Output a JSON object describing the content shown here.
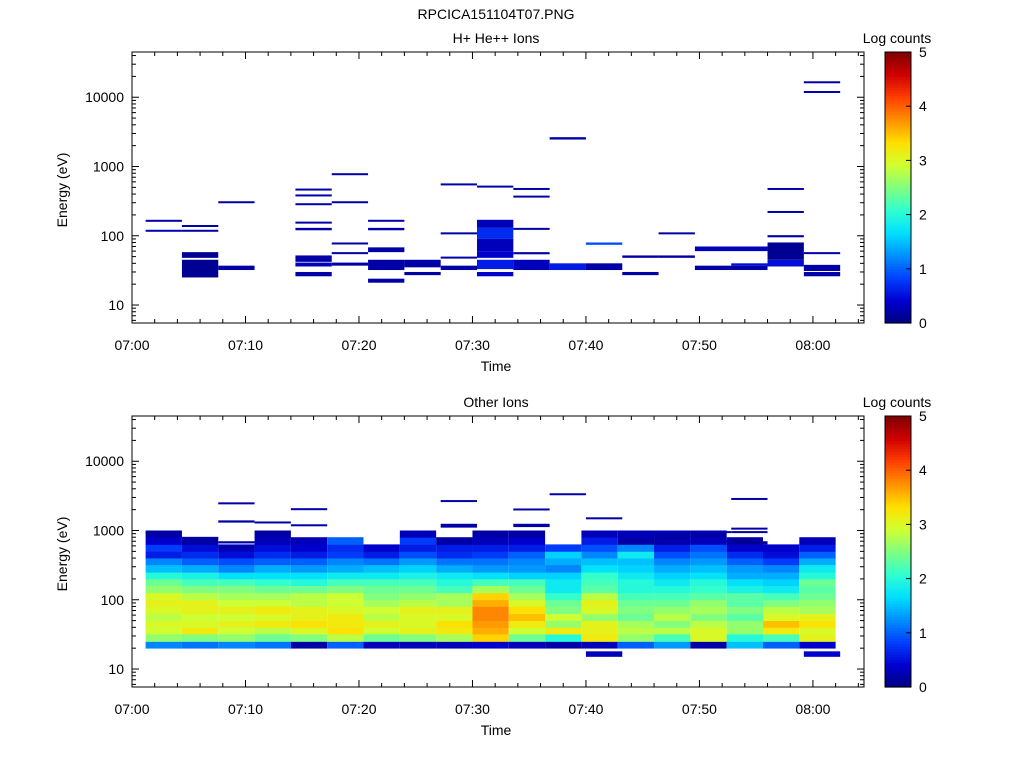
{
  "figure_title": "RPCICA151104T07.PNG",
  "colors": {
    "frame": "#000000",
    "background": "#ffffff"
  },
  "colormap": [
    "#000080",
    "#0000d0",
    "#0040ff",
    "#0090ff",
    "#00e0ff",
    "#30ffd0",
    "#80ff80",
    "#d0ff30",
    "#ffe000",
    "#ff9000",
    "#ff4000",
    "#d00000",
    "#800000"
  ],
  "chart_data": [
    {
      "type": "heatmap",
      "title": "H+ He++ Ions",
      "xlabel": "Time",
      "ylabel": "Energy (eV)",
      "xlim": [
        0,
        64.5
      ],
      "ylim": [
        5.5,
        45000
      ],
      "y_log": true,
      "x_ticks": [
        0,
        10,
        20,
        30,
        40,
        50,
        60
      ],
      "x_tick_labels": [
        "07:00",
        "07:10",
        "07:20",
        "07:30",
        "07:40",
        "07:50",
        "08:00"
      ],
      "y_ticks": [
        10,
        100,
        1000,
        10000
      ],
      "y_tick_labels": [
        "10",
        "100",
        "1000",
        "10000"
      ],
      "colorbar": {
        "label": "Log counts",
        "range": [
          0,
          5
        ],
        "ticks": [
          "0",
          "1",
          "2",
          "3",
          "4",
          "5"
        ]
      },
      "cells": [
        [
          1.2,
          4.4,
          118,
          122,
          0.3
        ],
        [
          1.2,
          4.4,
          165,
          170,
          0.2
        ],
        [
          4.4,
          7.6,
          25,
          45,
          0.1
        ],
        [
          4.4,
          7.6,
          48,
          58,
          0.1
        ],
        [
          4.4,
          7.6,
          118,
          122,
          0.2
        ],
        [
          4.4,
          7.6,
          138,
          143,
          0.2
        ],
        [
          7.6,
          10.8,
          32,
          37,
          0.2
        ],
        [
          7.6,
          10.8,
          305,
          315,
          0.2
        ],
        [
          14.4,
          17.6,
          26,
          30,
          0.2
        ],
        [
          14.4,
          17.6,
          36,
          41,
          0.3
        ],
        [
          14.4,
          17.6,
          42,
          52,
          0.2
        ],
        [
          14.4,
          17.6,
          120,
          130,
          0.2
        ],
        [
          14.4,
          17.6,
          150,
          160,
          0.2
        ],
        [
          14.4,
          17.6,
          285,
          295,
          0.2
        ],
        [
          14.4,
          17.6,
          380,
          395,
          0.2
        ],
        [
          14.4,
          17.6,
          460,
          480,
          0.2
        ],
        [
          17.6,
          20.8,
          37,
          41,
          0.2
        ],
        [
          17.6,
          20.8,
          55,
          58,
          0.2
        ],
        [
          17.6,
          20.8,
          76,
          80,
          0.2
        ],
        [
          17.6,
          20.8,
          305,
          315,
          0.2
        ],
        [
          17.6,
          20.8,
          780,
          800,
          0.2
        ],
        [
          20.8,
          24.0,
          21,
          24,
          0.2
        ],
        [
          20.8,
          24.0,
          32,
          45,
          0.2
        ],
        [
          20.8,
          24.0,
          58,
          68,
          0.2
        ],
        [
          20.8,
          24.0,
          120,
          130,
          0.2
        ],
        [
          20.8,
          24.0,
          165,
          170,
          0.2
        ],
        [
          24.0,
          27.2,
          27,
          30,
          0.2
        ],
        [
          24.0,
          27.2,
          35,
          45,
          0.2
        ],
        [
          27.2,
          30.4,
          32,
          37,
          0.2
        ],
        [
          27.2,
          30.4,
          47,
          50,
          0.2
        ],
        [
          27.2,
          30.4,
          108,
          112,
          0.2
        ],
        [
          27.2,
          30.4,
          550,
          570,
          0.2
        ],
        [
          30.4,
          33.6,
          26,
          30,
          0.4
        ],
        [
          30.4,
          33.6,
          33,
          45,
          0.6
        ],
        [
          30.4,
          33.6,
          48,
          60,
          0.4
        ],
        [
          30.4,
          33.6,
          60,
          90,
          0.3
        ],
        [
          30.4,
          33.6,
          90,
          130,
          0.7
        ],
        [
          30.4,
          33.6,
          130,
          170,
          0.3
        ],
        [
          30.4,
          33.6,
          510,
          530,
          0.2
        ],
        [
          33.6,
          36.8,
          32,
          45,
          0.3
        ],
        [
          33.6,
          36.8,
          54,
          58,
          0.2
        ],
        [
          33.6,
          36.8,
          125,
          130,
          0.2
        ],
        [
          33.6,
          36.8,
          365,
          380,
          0.2
        ],
        [
          33.6,
          36.8,
          460,
          490,
          0.2
        ],
        [
          36.8,
          40.0,
          32,
          40,
          0.6
        ],
        [
          36.8,
          40.0,
          2450,
          2650,
          0.2
        ],
        [
          40.0,
          43.2,
          32,
          40,
          0.2
        ],
        [
          40.0,
          43.2,
          74,
          80,
          0.9
        ],
        [
          43.2,
          46.4,
          27,
          30,
          0.2
        ],
        [
          43.2,
          46.4,
          48,
          52,
          0.2
        ],
        [
          46.4,
          49.6,
          48,
          52,
          0.2
        ],
        [
          46.4,
          49.6,
          108,
          112,
          0.2
        ],
        [
          49.6,
          56.0,
          32,
          37,
          0.2
        ],
        [
          49.6,
          56.0,
          60,
          70,
          0.3
        ],
        [
          52.8,
          56.0,
          37,
          40,
          0.5
        ],
        [
          56.0,
          59.2,
          36,
          45,
          0.5
        ],
        [
          56.0,
          59.2,
          45,
          80,
          0.1
        ],
        [
          56.0,
          59.2,
          95,
          102,
          0.2
        ],
        [
          56.0,
          59.2,
          218,
          228,
          0.2
        ],
        [
          56.0,
          59.2,
          460,
          490,
          0.2
        ],
        [
          59.2,
          62.4,
          26,
          30,
          0.2
        ],
        [
          59.2,
          62.4,
          31,
          38,
          0.2
        ],
        [
          59.2,
          62.4,
          55,
          58,
          0.2
        ],
        [
          59.2,
          62.4,
          11700,
          12300,
          0.2
        ],
        [
          59.2,
          62.4,
          16000,
          17000,
          0.2
        ]
      ]
    },
    {
      "type": "heatmap",
      "title": "Other Ions",
      "xlabel": "Time",
      "ylabel": "Energy (eV)",
      "xlim": [
        0,
        64.5
      ],
      "ylim": [
        5.5,
        45000
      ],
      "y_log": true,
      "x_ticks": [
        0,
        10,
        20,
        30,
        40,
        50,
        60
      ],
      "x_tick_labels": [
        "07:00",
        "07:10",
        "07:20",
        "07:30",
        "07:40",
        "07:50",
        "08:00"
      ],
      "y_ticks": [
        10,
        100,
        1000,
        10000
      ],
      "y_tick_labels": [
        "10",
        "100",
        "1000",
        "10000"
      ],
      "colorbar": {
        "label": "Log counts",
        "range": [
          0,
          5
        ],
        "ticks": [
          "0",
          "1",
          "2",
          "3",
          "4",
          "5"
        ]
      },
      "time_bins": [
        1.2,
        4.4,
        7.6,
        10.8,
        14.0,
        17.2,
        20.4,
        23.6,
        26.8,
        30.0,
        33.2,
        36.4,
        39.6,
        42.8,
        46.0,
        49.2,
        52.4,
        55.6,
        58.8,
        62.0
      ],
      "energy_bins": [
        20.0,
        25.0,
        32.0,
        40.0,
        50.0,
        63.0,
        80.0,
        100.0,
        126.0,
        160.0,
        200.0,
        250.0,
        320.0,
        400.0,
        500.0,
        630.0,
        800.0,
        1000.0
      ],
      "values": [
        [
          1.2,
          2.6,
          2.9,
          3.0,
          2.8,
          3.0,
          3.1,
          3.0,
          2.6,
          2.4,
          2.0,
          1.5,
          1.2,
          0.6,
          0.8,
          0.4,
          0.2
        ],
        [
          1.1,
          2.5,
          3.2,
          3.0,
          2.9,
          3.1,
          3.1,
          2.8,
          2.5,
          2.2,
          1.9,
          1.4,
          1.0,
          0.7,
          0.5,
          0.2,
          null
        ],
        [
          1.2,
          2.6,
          2.9,
          3.1,
          2.9,
          3.1,
          2.9,
          2.7,
          2.5,
          2.2,
          1.7,
          1.2,
          0.9,
          0.5,
          0.3,
          null,
          null
        ],
        [
          1.1,
          2.4,
          2.8,
          3.2,
          3.0,
          3.2,
          2.9,
          2.7,
          2.4,
          2.1,
          1.7,
          1.4,
          1.0,
          0.7,
          0.5,
          0.3,
          0.2
        ],
        [
          0.2,
          2.5,
          3.0,
          3.3,
          3.1,
          3.1,
          2.8,
          2.8,
          2.4,
          2.0,
          1.7,
          1.3,
          1.0,
          0.6,
          0.4,
          0.3,
          null
        ],
        [
          1.0,
          2.8,
          3.3,
          3.2,
          3.2,
          3.0,
          2.9,
          2.9,
          2.5,
          2.2,
          1.8,
          1.4,
          1.2,
          0.8,
          0.7,
          1.0,
          null
        ],
        [
          0.3,
          2.4,
          2.9,
          3.1,
          2.8,
          2.9,
          2.7,
          2.5,
          2.4,
          2.2,
          1.8,
          1.5,
          1.1,
          0.6,
          0.4,
          null,
          null
        ],
        [
          0.3,
          2.5,
          3.1,
          3.0,
          3.0,
          3.1,
          2.8,
          2.6,
          2.4,
          2.2,
          1.9,
          1.6,
          1.3,
          0.9,
          0.6,
          0.8,
          0.3
        ],
        [
          0.3,
          2.7,
          3.2,
          3.3,
          3.0,
          3.1,
          2.7,
          2.7,
          2.2,
          2.0,
          1.8,
          1.4,
          1.1,
          0.7,
          0.6,
          0.2,
          null
        ],
        [
          0.4,
          3.4,
          3.6,
          3.7,
          3.8,
          3.8,
          3.6,
          3.4,
          2.7,
          2.2,
          1.7,
          1.3,
          1.1,
          0.8,
          0.6,
          0.3,
          0.2
        ],
        [
          0.3,
          2.4,
          2.9,
          3.2,
          3.5,
          3.3,
          3.0,
          2.7,
          2.4,
          2.2,
          1.6,
          1.3,
          1.2,
          1.0,
          0.6,
          0.4,
          0.2
        ],
        [
          0.2,
          2.0,
          3.2,
          2.6,
          2.9,
          2.5,
          2.4,
          2.1,
          1.8,
          1.8,
          1.6,
          1.2,
          1.4,
          1.6,
          0.8,
          null,
          null
        ],
        [
          0.3,
          3.2,
          3.1,
          3.1,
          2.6,
          3.0,
          3.1,
          2.8,
          2.3,
          2.2,
          2.1,
          1.7,
          1.5,
          1.2,
          0.9,
          0.6,
          0.3
        ],
        [
          1.0,
          2.6,
          2.8,
          2.7,
          2.4,
          2.5,
          2.4,
          2.2,
          2.0,
          2.0,
          1.8,
          1.6,
          1.5,
          1.8,
          1.2,
          0.2,
          0.3
        ],
        [
          1.3,
          2.2,
          2.8,
          2.5,
          2.8,
          2.6,
          2.4,
          2.2,
          2.0,
          1.8,
          1.6,
          1.4,
          1.2,
          0.9,
          0.6,
          0.2,
          0.2
        ],
        [
          0.2,
          3.0,
          3.0,
          2.8,
          2.5,
          2.7,
          2.6,
          2.3,
          2.1,
          2.0,
          1.7,
          1.5,
          1.3,
          1.1,
          0.9,
          0.3,
          0.2
        ],
        [
          1.5,
          2.0,
          2.6,
          2.6,
          2.3,
          2.5,
          2.3,
          2.3,
          1.9,
          1.7,
          1.4,
          1.3,
          1.0,
          0.7,
          0.4,
          0.2,
          null
        ],
        [
          1.0,
          2.2,
          3.2,
          3.5,
          3.0,
          2.8,
          2.5,
          2.2,
          1.8,
          1.6,
          1.4,
          1.2,
          0.8,
          0.5,
          0.4,
          null,
          null
        ],
        [
          0.4,
          3.1,
          3.0,
          3.3,
          3.1,
          2.7,
          2.6,
          2.4,
          2.3,
          2.4,
          2.0,
          1.8,
          1.4,
          1.0,
          0.6,
          0.3,
          null
        ]
      ],
      "cells": [
        [
          1.2,
          4.4,
          910,
          960,
          0.2
        ],
        [
          4.4,
          7.6,
          770,
          810,
          0.2
        ],
        [
          7.6,
          10.8,
          2400,
          2550,
          0.2
        ],
        [
          7.6,
          10.8,
          1300,
          1400,
          0.2
        ],
        [
          7.6,
          10.8,
          650,
          700,
          0.2
        ],
        [
          7.6,
          10.8,
          560,
          600,
          0.2
        ],
        [
          10.8,
          14.0,
          1300,
          1350,
          0.2
        ],
        [
          14.0,
          17.2,
          2000,
          2100,
          0.2
        ],
        [
          14.0,
          17.2,
          1150,
          1230,
          0.2
        ],
        [
          27.2,
          30.4,
          2600,
          2750,
          0.2
        ],
        [
          27.2,
          30.4,
          1100,
          1250,
          0.2
        ],
        [
          33.6,
          36.8,
          1950,
          2080,
          0.2
        ],
        [
          33.6,
          36.8,
          1120,
          1250,
          0.2
        ],
        [
          36.8,
          40.0,
          3250,
          3450,
          0.2
        ],
        [
          40.0,
          43.2,
          1450,
          1550,
          0.2
        ],
        [
          40.0,
          43.2,
          15,
          18,
          0.3
        ],
        [
          43.2,
          52.8,
          920,
          980,
          0.3
        ],
        [
          46.4,
          52.8,
          680,
          720,
          0.3
        ],
        [
          52.8,
          56.0,
          2800,
          2950,
          0.2
        ],
        [
          52.8,
          56.0,
          1050,
          1100,
          0.2
        ],
        [
          52.8,
          56.0,
          930,
          980,
          0.2
        ],
        [
          52.8,
          56.0,
          630,
          700,
          0.1
        ],
        [
          59.2,
          62.4,
          15,
          18,
          0.4
        ]
      ]
    }
  ]
}
